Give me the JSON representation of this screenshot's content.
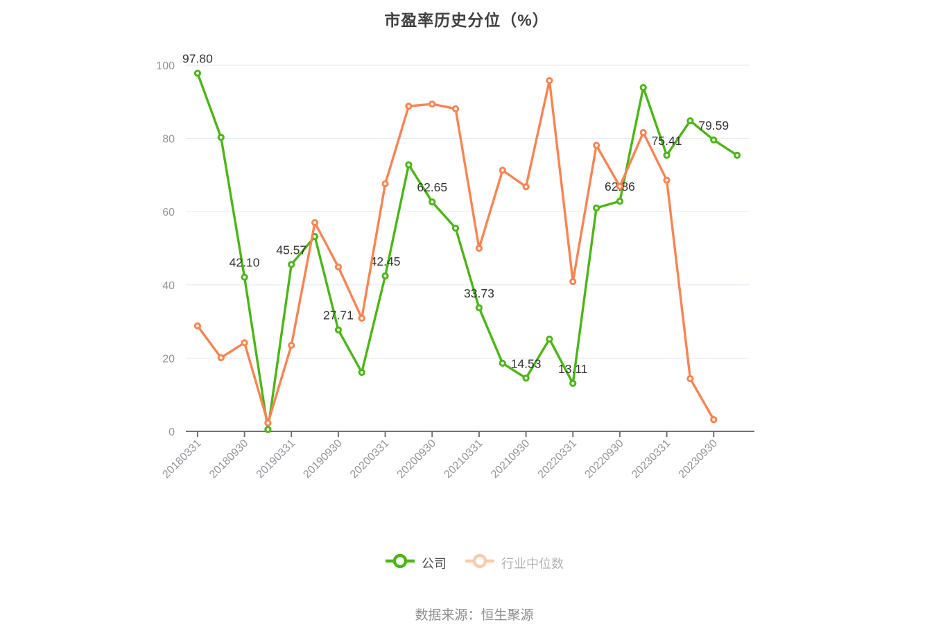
{
  "title": "市盈率历史分位（%）",
  "source": "数据来源：恒生聚源",
  "legend": {
    "items": [
      {
        "label": "公司",
        "line_color": "#4ab714",
        "marker_color": "#4ab714"
      },
      {
        "label": "行业中位数",
        "line_color": "#fb8350",
        "marker_color": "#fccaab"
      }
    ]
  },
  "colors": {
    "company_line": "#4ab714",
    "industry_line": "#fb8350",
    "grid_line": "#e3e7f3",
    "axis_line": "#6f7277",
    "tick_label": "#94959a",
    "data_label": "#333333",
    "title_text": "#404040",
    "source_text": "#8f8f8f"
  },
  "chart_data": {
    "type": "line",
    "title": "市盈率历史分位（%）",
    "xlabel": "",
    "ylabel": "",
    "ylim": [
      0,
      100
    ],
    "yticks": [
      0,
      20,
      40,
      60,
      80,
      100
    ],
    "grid": true,
    "legend_position": "bottom",
    "xtick_labels_shown": [
      "20180331",
      "20180930",
      "20190331",
      "20190930",
      "20200331",
      "20200930",
      "20210331",
      "20210930",
      "20220331",
      "20220930",
      "20230331",
      "20230930"
    ],
    "categories": [
      "20180331",
      "20180630",
      "20180930",
      "20181231",
      "20190331",
      "20190630",
      "20190930",
      "20191231",
      "20200331",
      "20200630",
      "20200930",
      "20201231",
      "20210331",
      "20210630",
      "20210930",
      "20211231",
      "20220331",
      "20220630",
      "20220930",
      "20221231",
      "20230331",
      "20230630",
      "20230930",
      "20231231"
    ],
    "series": [
      {
        "name": "公司",
        "color": "#4ab714",
        "values": [
          97.8,
          80.3,
          42.1,
          0.5,
          45.57,
          53.2,
          27.71,
          16.1,
          42.45,
          72.8,
          62.65,
          55.5,
          33.73,
          18.6,
          14.53,
          25.2,
          13.11,
          61.0,
          62.86,
          93.9,
          75.41,
          84.8,
          79.59,
          75.4
        ],
        "point_labels": [
          "97.80",
          null,
          "42.10",
          null,
          "45.57",
          null,
          "27.71",
          null,
          "42.45",
          null,
          "62.65",
          null,
          "33.73",
          null,
          "14.53",
          null,
          "13.11",
          null,
          "62.86",
          null,
          "75.41",
          null,
          "79.59",
          null
        ]
      },
      {
        "name": "行业中位数",
        "color": "#fb8350",
        "values": [
          28.8,
          20.1,
          24.2,
          2.3,
          23.5,
          57.0,
          44.9,
          30.9,
          67.6,
          88.8,
          89.4,
          88.1,
          50.0,
          71.3,
          66.8,
          95.8,
          40.9,
          78.1,
          66.9,
          81.6,
          68.6,
          14.4,
          3.2,
          null
        ],
        "point_labels": []
      }
    ]
  }
}
